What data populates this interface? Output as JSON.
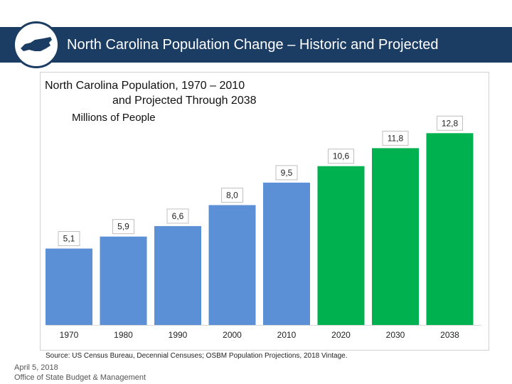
{
  "header": {
    "title": "North Carolina Population Change – Historic and Projected"
  },
  "chart_data": {
    "type": "bar",
    "title": "North Carolina Population, 1970 – 2010",
    "title_line2": "and Projected Through 2038",
    "ylabel": "Millions of People",
    "xlabel": "",
    "categories": [
      "1970",
      "1980",
      "1990",
      "2000",
      "2010",
      "2020",
      "2030",
      "2038"
    ],
    "values": [
      5.1,
      5.9,
      6.6,
      8.0,
      9.5,
      10.6,
      11.8,
      12.8
    ],
    "value_labels": [
      "5,1",
      "5,9",
      "6,6",
      "8,0",
      "9,5",
      "10,6",
      "11,8",
      "12,8"
    ],
    "bar_types": [
      "historic",
      "historic",
      "historic",
      "historic",
      "historic",
      "projected",
      "projected",
      "projected"
    ],
    "colors": {
      "historic": "#5b8fd6",
      "projected": "#00b14f"
    },
    "ylim": [
      0,
      14
    ],
    "grid": false,
    "legend": "none"
  },
  "source": "Source: US Census Bureau, Decennial Censuses; OSBM Population Projections, 2018 Vintage.",
  "footer": {
    "date": "April 5, 2018",
    "org": "Office of State Budget & Management"
  }
}
